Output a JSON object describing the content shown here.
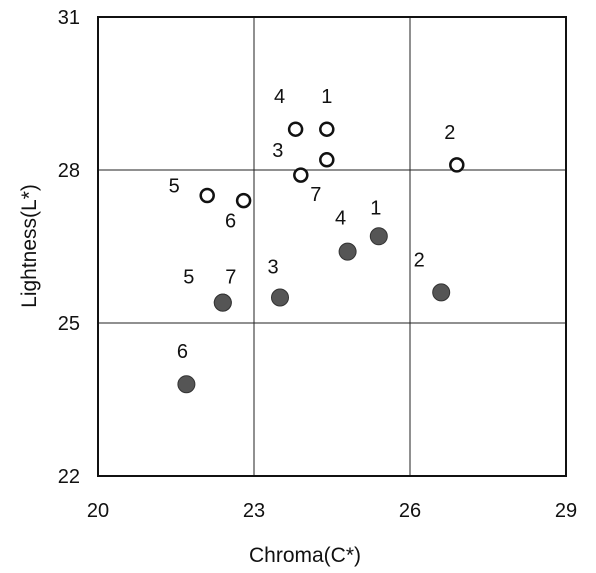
{
  "chart_data": {
    "type": "scatter",
    "title": "",
    "xlabel": "Chroma(C*)",
    "ylabel": "Lightness(L*)",
    "xlim": [
      20,
      29
    ],
    "ylim": [
      22,
      31
    ],
    "xticks": [
      "20",
      "23",
      "26",
      "29"
    ],
    "yticks": [
      "22",
      "25",
      "28",
      "31"
    ],
    "grid": true,
    "legend": "none",
    "series": [
      {
        "marker": "open-circle",
        "color": "#111111",
        "points": [
          {
            "label": "1",
            "x": 24.4,
            "y": 28.8
          },
          {
            "label": "2",
            "x": 26.9,
            "y": 28.1
          },
          {
            "label": "3",
            "x": 24.4,
            "y": 28.2
          },
          {
            "label": "4",
            "x": 23.8,
            "y": 28.8
          },
          {
            "label": "5",
            "x": 22.1,
            "y": 27.5
          },
          {
            "label": "6",
            "x": 22.8,
            "y": 27.4
          },
          {
            "label": "7",
            "x": 23.9,
            "y": 27.9
          }
        ]
      },
      {
        "marker": "filled-circle",
        "color": "#555555",
        "points": [
          {
            "label": "1",
            "x": 25.4,
            "y": 26.7
          },
          {
            "label": "2",
            "x": 26.6,
            "y": 25.6
          },
          {
            "label": "3",
            "x": 23.5,
            "y": 25.5
          },
          {
            "label": "4",
            "x": 24.8,
            "y": 26.4
          },
          {
            "label": "5",
            "x": 22.4,
            "y": 25.4
          },
          {
            "label": "6",
            "x": 21.7,
            "y": 23.8
          },
          {
            "label": "7",
            "x": 22.4,
            "y": 25.4
          }
        ]
      }
    ]
  }
}
